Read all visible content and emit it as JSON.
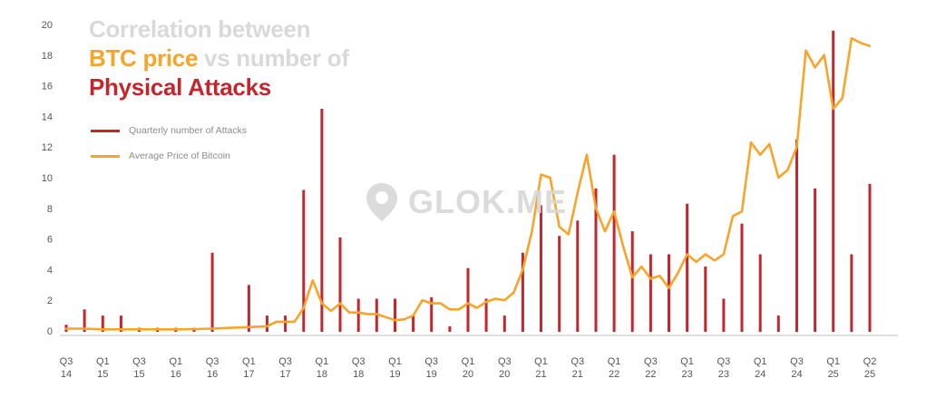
{
  "title": {
    "line1": "Correlation between",
    "line2_part1": "BTC price",
    "line2_part2": " vs ",
    "line2_part3": "number of",
    "line3": "Physical Attacks"
  },
  "watermark": {
    "text": "GLOK.ME",
    "icon": "location-pin-icon"
  },
  "colors": {
    "attacks": "#c4262d",
    "price": "#f7a42a",
    "title_grey": "#d9d9d9",
    "axis_text": "#555555"
  },
  "chart_data": {
    "type": "bar",
    "title": "Correlation between BTC price vs number of Physical Attacks",
    "xlabel": "",
    "ylabel": "",
    "ylim": [
      0,
      20
    ],
    "y_ticks": [
      "0",
      "2",
      "4",
      "6",
      "8",
      "10",
      "12",
      "14",
      "16",
      "18",
      "20"
    ],
    "grid": false,
    "legend_position": "upper-left",
    "x_ticks": [
      {
        "q": "Q3",
        "y": "14"
      },
      {
        "q": "Q1",
        "y": "15"
      },
      {
        "q": "Q3",
        "y": "15"
      },
      {
        "q": "Q1",
        "y": "16"
      },
      {
        "q": "Q3",
        "y": "16"
      },
      {
        "q": "Q1",
        "y": "17"
      },
      {
        "q": "Q3",
        "y": "17"
      },
      {
        "q": "Q1",
        "y": "18"
      },
      {
        "q": "Q3",
        "y": "18"
      },
      {
        "q": "Q1",
        "y": "19"
      },
      {
        "q": "Q3",
        "y": "19"
      },
      {
        "q": "Q1",
        "y": "20"
      },
      {
        "q": "Q3",
        "y": "20"
      },
      {
        "q": "Q1",
        "y": "21"
      },
      {
        "q": "Q3",
        "y": "21"
      },
      {
        "q": "Q1",
        "y": "22"
      },
      {
        "q": "Q3",
        "y": "22"
      },
      {
        "q": "Q1",
        "y": "23"
      },
      {
        "q": "Q3",
        "y": "23"
      },
      {
        "q": "Q1",
        "y": "24"
      },
      {
        "q": "Q3",
        "y": "24"
      },
      {
        "q": "Q1",
        "y": "25"
      },
      {
        "q": "Q2",
        "y": "25"
      }
    ],
    "series": [
      {
        "name": "Quarterly number of Attacks",
        "type": "bar",
        "points": [
          [
            0,
            0.4
          ],
          [
            1,
            1.4
          ],
          [
            2,
            1.0
          ],
          [
            3,
            1.0
          ],
          [
            4,
            0.2
          ],
          [
            5,
            0.2
          ],
          [
            6,
            0.2
          ],
          [
            7,
            0.2
          ],
          [
            8,
            5.1
          ],
          [
            10,
            3.0
          ],
          [
            11,
            1.0
          ],
          [
            12,
            1.0
          ],
          [
            13,
            9.2
          ],
          [
            14,
            14.5
          ],
          [
            15,
            6.1
          ],
          [
            16,
            2.1
          ],
          [
            17,
            2.1
          ],
          [
            18,
            2.1
          ],
          [
            19,
            1.0
          ],
          [
            20,
            2.2
          ],
          [
            21,
            0.3
          ],
          [
            22,
            4.1
          ],
          [
            23,
            2.1
          ],
          [
            24,
            1.0
          ],
          [
            25,
            5.1
          ],
          [
            26,
            8.2
          ],
          [
            27,
            6.2
          ],
          [
            28,
            7.2
          ],
          [
            29,
            9.3
          ],
          [
            30,
            11.5
          ],
          [
            31,
            6.5
          ],
          [
            32,
            5.0
          ],
          [
            33,
            5.0
          ],
          [
            34,
            8.3
          ],
          [
            35,
            4.2
          ],
          [
            36,
            2.1
          ],
          [
            37,
            7.0
          ],
          [
            38,
            5.0
          ],
          [
            39,
            1.0
          ],
          [
            40,
            12.5
          ],
          [
            41,
            9.3
          ],
          [
            42,
            19.6
          ],
          [
            43,
            5.0
          ],
          [
            44,
            9.6
          ]
        ]
      },
      {
        "name": "Average Price of Bitcoin",
        "type": "line",
        "points": [
          [
            0,
            0.15
          ],
          [
            1,
            0.15
          ],
          [
            2,
            0.1
          ],
          [
            3,
            0.1
          ],
          [
            4,
            0.1
          ],
          [
            5,
            0.1
          ],
          [
            6,
            0.1
          ],
          [
            7,
            0.12
          ],
          [
            8,
            0.15
          ],
          [
            9,
            0.2
          ],
          [
            10,
            0.25
          ],
          [
            11,
            0.3
          ],
          [
            11.5,
            0.6
          ],
          [
            12,
            0.6
          ],
          [
            12.5,
            0.6
          ],
          [
            13,
            1.5
          ],
          [
            13.5,
            3.3
          ],
          [
            14,
            1.8
          ],
          [
            14.5,
            1.3
          ],
          [
            15,
            1.8
          ],
          [
            15.5,
            1.2
          ],
          [
            16,
            1.2
          ],
          [
            16.5,
            1.1
          ],
          [
            17,
            1.1
          ],
          [
            17.5,
            0.9
          ],
          [
            18,
            0.7
          ],
          [
            18.5,
            0.75
          ],
          [
            19,
            1.0
          ],
          [
            19.5,
            2.0
          ],
          [
            20,
            1.8
          ],
          [
            20.5,
            1.8
          ],
          [
            21,
            1.4
          ],
          [
            21.5,
            1.4
          ],
          [
            22,
            1.8
          ],
          [
            22.5,
            1.5
          ],
          [
            23,
            1.9
          ],
          [
            23.5,
            2.1
          ],
          [
            24,
            2.0
          ],
          [
            24.5,
            2.5
          ],
          [
            25,
            4.0
          ],
          [
            25.5,
            6.5
          ],
          [
            26,
            10.2
          ],
          [
            26.5,
            10.0
          ],
          [
            27,
            6.8
          ],
          [
            27.5,
            6.3
          ],
          [
            28,
            9.0
          ],
          [
            28.5,
            11.5
          ],
          [
            29,
            8.0
          ],
          [
            29.5,
            6.5
          ],
          [
            30,
            7.8
          ],
          [
            30.5,
            5.5
          ],
          [
            31,
            3.5
          ],
          [
            31.5,
            4.2
          ],
          [
            32,
            3.4
          ],
          [
            32.5,
            3.6
          ],
          [
            33,
            2.8
          ],
          [
            33.5,
            3.8
          ],
          [
            34,
            5.0
          ],
          [
            34.5,
            4.5
          ],
          [
            35,
            5.0
          ],
          [
            35.5,
            4.6
          ],
          [
            36,
            5.0
          ],
          [
            36.5,
            7.5
          ],
          [
            37,
            7.8
          ],
          [
            37.5,
            12.3
          ],
          [
            38,
            11.5
          ],
          [
            38.5,
            12.2
          ],
          [
            39,
            10.0
          ],
          [
            39.5,
            10.5
          ],
          [
            40,
            12.0
          ],
          [
            40.5,
            18.3
          ],
          [
            41,
            17.2
          ],
          [
            41.5,
            18.0
          ],
          [
            42,
            14.5
          ],
          [
            42.5,
            15.2
          ],
          [
            43,
            19.1
          ],
          [
            43.5,
            18.8
          ],
          [
            44,
            18.6
          ]
        ]
      }
    ]
  }
}
